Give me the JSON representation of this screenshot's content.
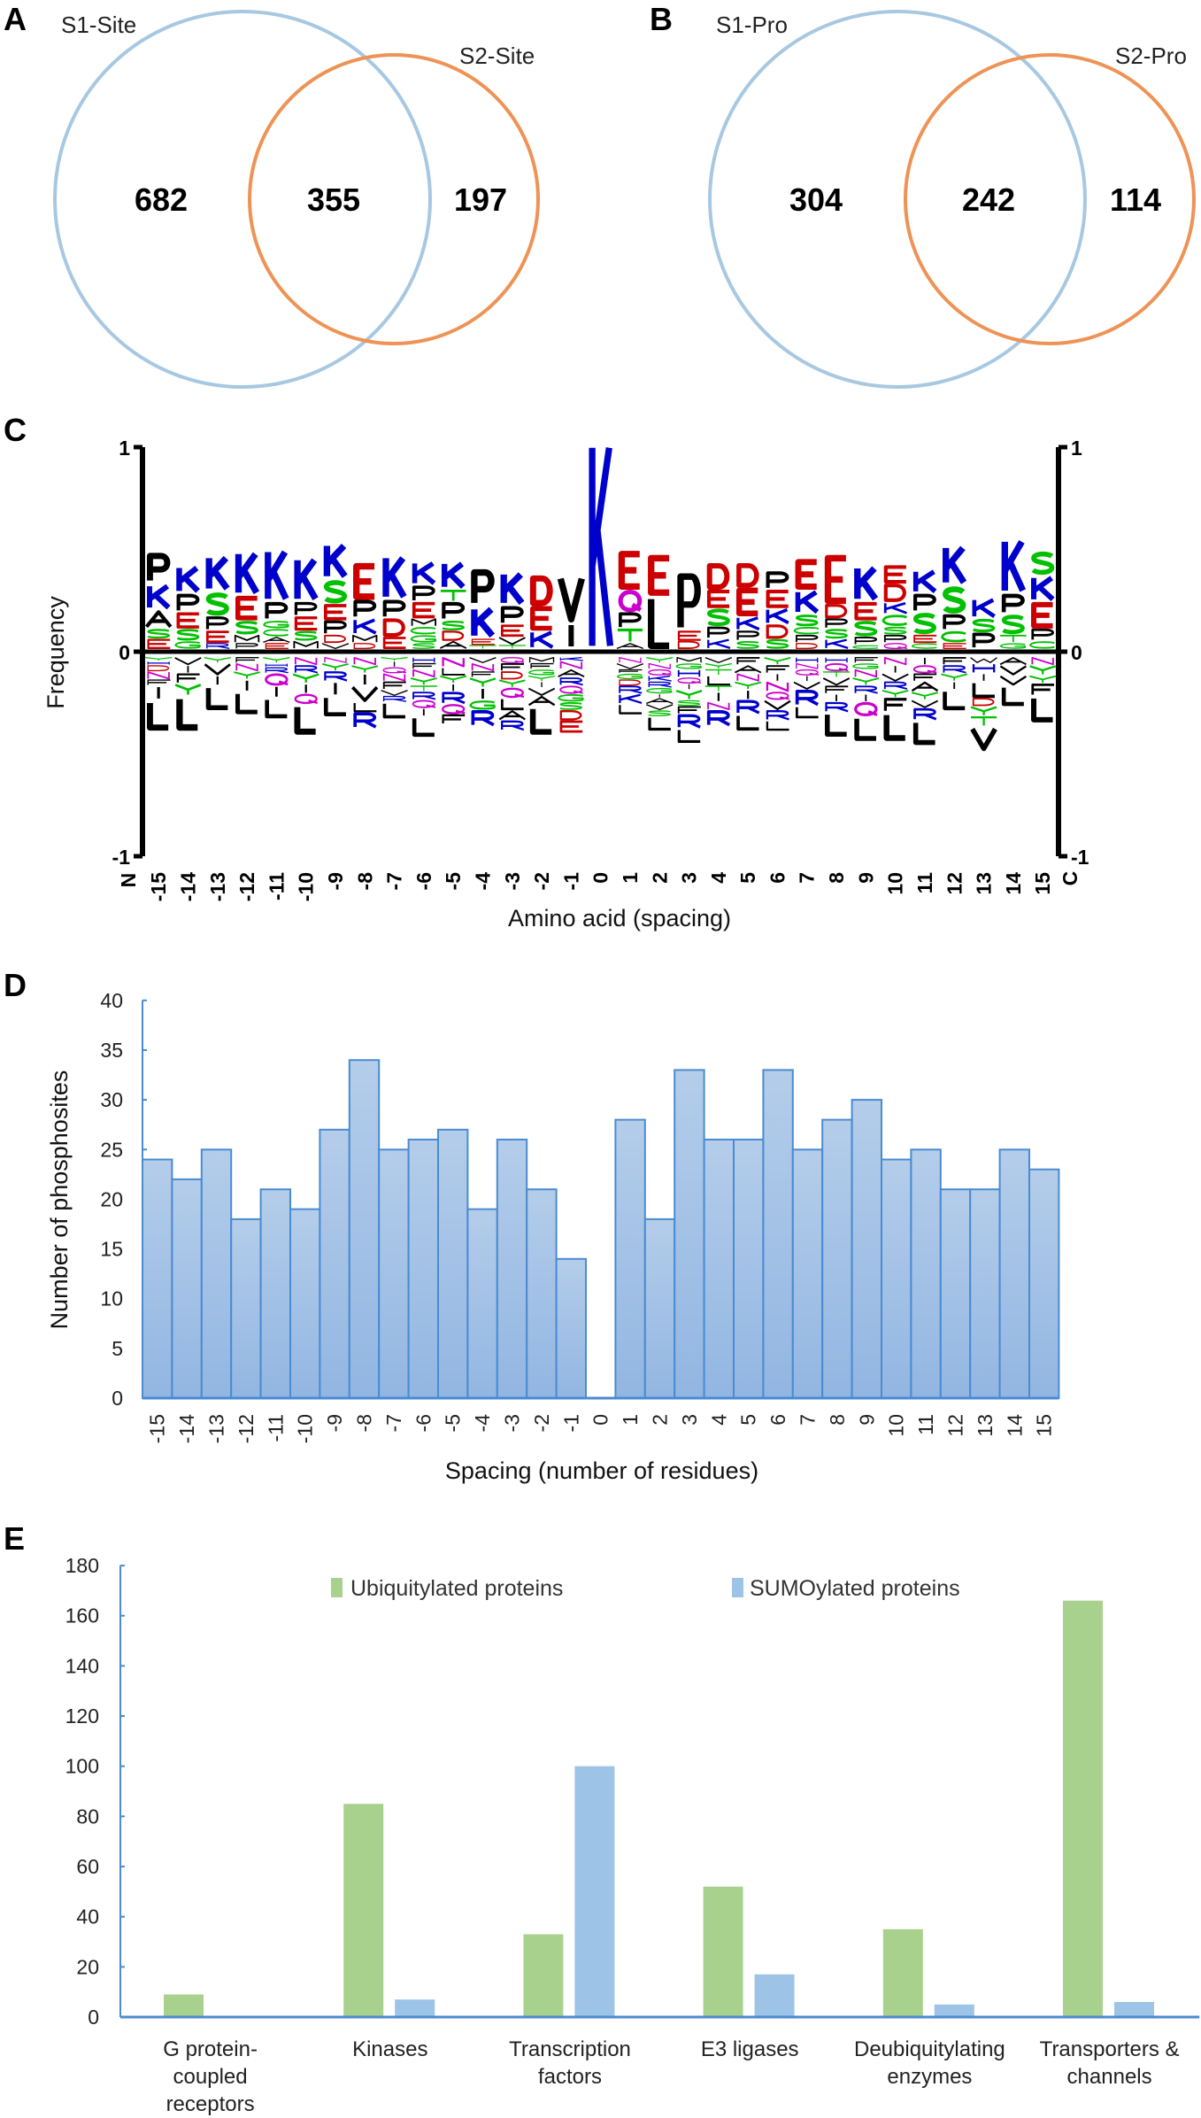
{
  "colors": {
    "venn_s1": "#a8c8e2",
    "venn_s2": "#ee9355",
    "logo_blue": "#0000cc",
    "logo_red": "#cc0000",
    "logo_green": "#00c000",
    "logo_magenta": "#cc00cc",
    "logo_black": "#000000",
    "bar_d_fill_top": "#b4cdea",
    "bar_d_fill_bottom": "#92b6e2",
    "bar_d_stroke": "#4a8bd1",
    "axis_blue": "#4a8bd1",
    "ubiquitylated": "#a9d18e",
    "sumoylated": "#9dc3e6"
  },
  "panels": {
    "A": "A",
    "B": "B",
    "C": "C",
    "D": "D",
    "E": "E"
  },
  "chart_data": [
    {
      "type": "venn",
      "panel": "A",
      "sets": [
        "S1-Site",
        "S2-Site"
      ],
      "only_s1": "682",
      "both": "355",
      "only_s2": "197"
    },
    {
      "type": "venn",
      "panel": "B",
      "sets": [
        "S1-Pro",
        "S2-Pro"
      ],
      "only_s1": "304",
      "both": "242",
      "only_s2": "114"
    },
    {
      "type": "sequence-logo",
      "panel": "C",
      "ylabel": "Frequency",
      "xlabel": "Amino acid (spacing)",
      "ylim": [
        -1,
        1
      ],
      "yticks": [
        "1",
        "0",
        "-1"
      ],
      "n_label": "N",
      "c_label": "C",
      "positions": [
        -15,
        -14,
        -13,
        -12,
        -11,
        -10,
        -9,
        -8,
        -7,
        -6,
        -5,
        -4,
        -3,
        -2,
        -1,
        0,
        1,
        2,
        3,
        4,
        5,
        6,
        7,
        8,
        9,
        10,
        11,
        12,
        13,
        14,
        15
      ],
      "enriched": [
        "P.15 K.13 A.09 S.05 E.05",
        "K.14 P.09 E.08 S.06 G.04",
        "K.18 S.12 P.07 E.06 R.03",
        "K.22 E.12 S.07 M.04 P.03",
        "K.26 P.09 G.04 C.04 A.03 E.03",
        "K.22 P.07 E.07 S.05 M.04",
        "K.18 S.12 E.08 P.07 D.04 V.03",
        "E.18 P.09 K.08 M.04 D.03",
        "K.22 P.09 D.09 E.06",
        "K.12 P.08 E.08 M.04 C.04 G.04 S.03",
        "K.14 T.06 P.09 S.05 D.05 A.04",
        "P.18 K.16 E.03 T.02",
        "K.17 P.09 E.06 V.04 T.02",
        "D.15 E.12 K.09",
        "V.23 I.13",
        "K1.0",
        "E.19 Q.11 P.08 T.07 A.03",
        "E.20 L.26",
        "P.28 E.05 D.04",
        "D.13 E.09 S.09 P.06 K.05",
        "D.12 E.14 K.07 P.05 S.04",
        "P.09 E.09 K.08 D.07 S.05",
        "E.15 K.12 S.06 C.04 P.04 D.03",
        "E.24 D.07 P.05 S.05 K.05",
        "K.18 E.09 S.08 P.04 C.02",
        "E.09 D.09 K.06 C.06 S.04 P.04 Q.03",
        "K.12 P.09 S.11 E.04 C.03",
        "K.20 S.14 P.08 C.06 E.03",
        "K.10 S.07 P.08",
        "K.27 P.10 S.10 T.04 G.03",
        "S.12 K.13 E.13 P.06 C.04"
      ],
      "depleted": [
        "Y.02 H.02 D.03 N.04 F.03 I.07 L.15",
        "V.04 I.04 F.05 Y.06 L.17",
        "Y.03 V.06 I.05 L.12",
        "F.03 N.04 Y.04 I.06 L.11",
        "Y.03 H.02 R.03 Q.06 I.06 L.10",
        "N.04 R.04 Y.05 I.05 Q.05 L.15",
        "N.03 Y.04 R.05 I.07 L.10",
        "N.04 Y.04 I.06 V.08 L.05 R.08",
        "Y.02 I.03 Q.03 N.04 F.04 V.03 R.03 L.08",
        "H.03 F.03 N.04 Y.04 T.03 R.04 Q.04 I.04 L.10",
        "N.05 L.04 Y.04 I.04 R.06 Q.05 F.05",
        "V.03 N.04 F.03 Y.05 I.06 G.05 R.08",
        "Q.03 F.04 D.04 Y.04 Q.05 L.06 A.05 R.05",
        "M.03 F.03 G.03 Y.03 I.03 V.04 A.05 L.14",
        "K.02 N.04 A.04 R.04 Q.04 G.04 S.04 D.05 E.06",
        "",
        "N.03 V.03 F.02 G.03 D.03 R.04 K.05 L.05",
        "Y.03 N.03 Q.03 K.03 R.03 G.03 I.02 A.03 V.03 S.03 L.07",
        "M.03 G.03 H.04 Q.03 I.03 Y.05 S.03 F.04 R.07 L.07",
        "V.03 Y.03 T.03 L.05 T.03 I.05 N.04 R.08",
        "F.04 A.04 N.04 Y.04 I.05 R.07 L.08",
        "Y.04 F.04 I.04 N.05 Q.04 V.05 R.05 L.05",
        "H.03 N.03 Q.03 I.03 V.04 R.08 L.06",
        "H.03 Q.04 T.03 V.04 F.04 I.04 R.05 L.12",
        "F.03 G.03 N.04 Y.04 R.04 I.04 Q.07 L.12",
        "N.04 I.04 V.04 R.04 Y.04 F.07 L.14",
        "I.04 Q.04 F.04 A.05 Y.04 V.04 R.06 L.12",
        "F.04 R.04 Y.04 I.04 L.10",
        "W.03 H.05 I.04 L.08 D.04 Y.05 T.05 V.12",
        "A.04 V.05 V.05 L.10",
        "N.04 Y.05 Y.04 F.06 L.13"
      ]
    },
    {
      "type": "bar",
      "panel": "D",
      "ylabel": "Number of phosphosites",
      "xlabel": "Spacing (number of residues)",
      "ylim": [
        0,
        40
      ],
      "yticks": [
        0,
        5,
        10,
        15,
        20,
        25,
        30,
        35,
        40
      ],
      "categories": [
        "-15",
        "-14",
        "-13",
        "-12",
        "-11",
        "-10",
        "-9",
        "-8",
        "-7",
        "-6",
        "-5",
        "-4",
        "-3",
        "-2",
        "-1",
        "0",
        "1",
        "2",
        "3",
        "4",
        "5",
        "6",
        "7",
        "8",
        "9",
        "10",
        "11",
        "12",
        "13",
        "14",
        "15"
      ],
      "values": [
        24,
        22,
        25,
        18,
        21,
        19,
        27,
        34,
        25,
        26,
        27,
        19,
        26,
        21,
        14,
        0,
        28,
        18,
        33,
        26,
        26,
        33,
        25,
        28,
        30,
        24,
        25,
        21,
        21,
        25,
        23
      ]
    },
    {
      "type": "bar",
      "panel": "E",
      "ylim": [
        0,
        180
      ],
      "yticks": [
        0,
        20,
        40,
        60,
        80,
        100,
        120,
        140,
        160,
        180
      ],
      "legend_position": "top-center",
      "categories": [
        [
          "G protein-",
          "coupled",
          "receptors"
        ],
        [
          "Kinases"
        ],
        [
          "Transcription",
          "factors"
        ],
        [
          "E3 ligases"
        ],
        [
          "Deubiquitylating",
          "enzymes"
        ],
        [
          "Transporters &",
          "channels"
        ]
      ],
      "series": [
        {
          "name": "Ubiquitylated proteins",
          "values": [
            9,
            85,
            33,
            52,
            35,
            166
          ]
        },
        {
          "name": "SUMOylated proteins",
          "values": [
            0,
            7,
            100,
            17,
            5,
            6
          ]
        }
      ]
    }
  ]
}
